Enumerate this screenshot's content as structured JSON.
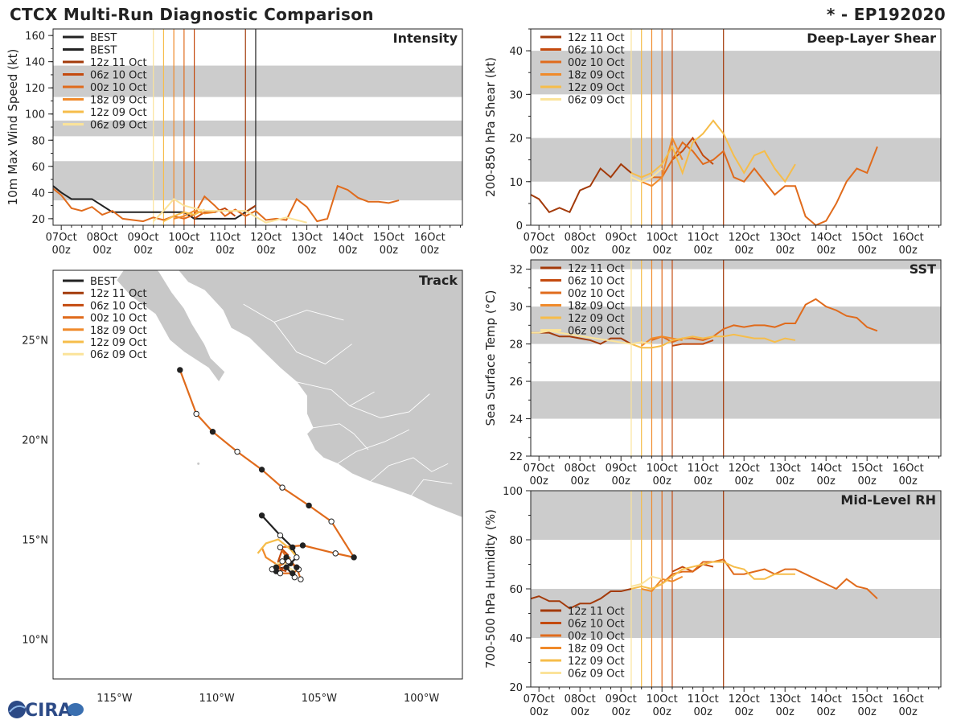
{
  "header": {
    "title": "CTCX Multi-Run Diagnostic Comparison",
    "storm_id": "* - EP192020"
  },
  "logo": {
    "text": "CIRA"
  },
  "runs": [
    {
      "label": "BEST",
      "color": "#222222"
    },
    {
      "label": "12z 11 Oct",
      "color": "#a33a0a",
      "init_day": 4.5
    },
    {
      "label": "06z 10 Oct",
      "color": "#c44a0e",
      "init_day": 3.25
    },
    {
      "label": "00z 10 Oct",
      "color": "#e06b1c",
      "init_day": 3.0
    },
    {
      "label": "18z 09 Oct",
      "color": "#f08a2a",
      "init_day": 2.75
    },
    {
      "label": "12z 09 Oct",
      "color": "#f6bd4a",
      "init_day": 2.5
    },
    {
      "label": "06z 09 Oct",
      "color": "#fbe39a",
      "init_day": 2.25
    }
  ],
  "time_axis": {
    "ticks": [
      {
        "top": "07Oct",
        "bottom": "00z"
      },
      {
        "top": "08Oct",
        "bottom": "00z"
      },
      {
        "top": "09Oct",
        "bottom": "00z"
      },
      {
        "top": "10Oct",
        "bottom": "00z"
      },
      {
        "top": "11Oct",
        "bottom": "00z"
      },
      {
        "top": "12Oct",
        "bottom": "00z"
      },
      {
        "top": "13Oct",
        "bottom": "00z"
      },
      {
        "top": "14Oct",
        "bottom": "00z"
      },
      {
        "top": "15Oct",
        "bottom": "00z"
      },
      {
        "top": "16Oct",
        "bottom": "00z"
      }
    ],
    "start_day": -0.2,
    "end_day": 9.8
  },
  "chart_data": [
    {
      "id": "intensity",
      "type": "line",
      "title": "Intensity",
      "ylabel": "10m Max Wind Speed (kt)",
      "ylim": [
        15,
        165
      ],
      "yticks": [
        20,
        40,
        60,
        80,
        100,
        120,
        140,
        160
      ],
      "shaded_bands": [
        [
          34,
          64
        ],
        [
          83,
          95
        ],
        [
          113,
          137
        ]
      ],
      "legend": "top-left",
      "series": [
        {
          "name": "BEST",
          "x": [
            -0.2,
            0.0,
            0.25,
            0.75,
            1.25,
            1.75,
            2.5,
            3.0,
            3.25,
            4.0,
            4.25,
            4.75
          ],
          "y": [
            45,
            40,
            35,
            35,
            25,
            25,
            25,
            25,
            20,
            20,
            20,
            30
          ]
        },
        {
          "name": "12z 11 Oct",
          "x": [
            4.5,
            4.75
          ],
          "y": [
            25,
            30
          ]
        },
        {
          "name": "06z 10 Oct",
          "x": [
            3.25,
            3.5,
            3.75,
            4.0,
            4.25
          ],
          "y": [
            20,
            25,
            25,
            28,
            22
          ]
        },
        {
          "name": "00z 10 Oct",
          "x": [
            -0.2,
            0.0,
            0.25,
            0.5,
            0.75,
            1.0,
            1.25,
            1.5,
            1.75,
            2.0,
            2.25,
            2.5,
            2.75,
            3.0,
            3.25,
            3.5,
            3.75,
            4.0,
            4.25,
            4.5,
            4.75,
            5.0,
            5.25,
            5.5,
            5.75,
            6.0,
            6.25,
            6.5,
            6.75,
            7.0,
            7.25,
            7.5,
            7.75,
            8.0,
            8.25
          ],
          "y": [
            43,
            38,
            28,
            26,
            29,
            23,
            26,
            20,
            19,
            18,
            21,
            19,
            22,
            20,
            23,
            37,
            30,
            22,
            27,
            22,
            26,
            19,
            20,
            19,
            35,
            29,
            18,
            20,
            45,
            42,
            36,
            33,
            33,
            32,
            34
          ]
        },
        {
          "name": "18z 09 Oct",
          "x": [
            2.75,
            3.0,
            3.25,
            3.5,
            3.75
          ],
          "y": [
            20,
            22,
            26,
            24,
            25
          ]
        },
        {
          "name": "12z 09 Oct",
          "x": [
            2.5,
            2.75,
            3.0,
            3.25,
            3.5
          ],
          "y": [
            18,
            22,
            25,
            23,
            27
          ]
        },
        {
          "name": "06z 09 Oct",
          "x": [
            2.25,
            2.5,
            2.75,
            3.0,
            3.25,
            3.5,
            4.5,
            5.0,
            5.5,
            6.0
          ],
          "y": [
            18,
            26,
            35,
            30,
            28,
            26,
            26,
            17,
            21,
            17
          ]
        }
      ]
    },
    {
      "id": "shear",
      "type": "line",
      "title": "Deep-Layer Shear",
      "ylabel": "200-850 hPa Shear (kt)",
      "ylim": [
        0,
        45
      ],
      "yticks": [
        0,
        10,
        20,
        30,
        40
      ],
      "shaded_bands": [
        [
          10,
          20
        ],
        [
          30,
          40
        ]
      ],
      "legend": "top-left",
      "series": [
        {
          "name": "12z 11 Oct",
          "x": [
            -0.2,
            0.0,
            0.25,
            0.5,
            0.75,
            1.0,
            1.25,
            1.5,
            1.75,
            2.0,
            2.25
          ],
          "y": [
            7,
            6,
            3,
            4,
            3,
            8,
            9,
            13,
            11,
            14,
            12
          ]
        },
        {
          "name": "06z 10 Oct",
          "x": [
            3.25,
            3.5,
            3.75,
            4.0,
            4.25
          ],
          "y": [
            15,
            17,
            20,
            16,
            14
          ]
        },
        {
          "name": "00z 10 Oct",
          "x": [
            2.75,
            3.0,
            3.25,
            3.5,
            3.75,
            4.0,
            4.25,
            4.5,
            4.75,
            5.0,
            5.25,
            5.5,
            5.75,
            6.0,
            6.25,
            6.5,
            6.75,
            7.0,
            7.25,
            7.5,
            7.75,
            8.0,
            8.25
          ],
          "y": [
            11,
            11,
            15,
            19,
            17,
            14,
            15,
            17,
            11,
            10,
            13,
            10,
            7,
            9,
            9,
            2,
            0,
            1,
            5,
            10,
            13,
            12,
            18
          ]
        },
        {
          "name": "18z 09 Oct",
          "x": [
            2.5,
            2.75,
            3.0,
            3.25,
            3.5
          ],
          "y": [
            10,
            9,
            11,
            20,
            15
          ]
        },
        {
          "name": "12z 09 Oct",
          "x": [
            2.25,
            2.5,
            2.75,
            3.0,
            3.25,
            3.5,
            3.75,
            4.0,
            4.25,
            4.5,
            4.75,
            5.0,
            5.25,
            5.5,
            5.75,
            6.0,
            6.25
          ],
          "y": [
            12,
            11,
            12,
            14,
            18,
            12,
            19,
            21,
            24,
            21,
            16,
            12,
            16,
            17,
            13,
            10,
            14
          ]
        },
        {
          "name": "06z 09 Oct",
          "x": [
            2.25,
            2.5,
            2.75,
            3.0
          ],
          "y": [
            11,
            10,
            11,
            13
          ]
        }
      ]
    },
    {
      "id": "sst",
      "type": "line",
      "title": "SST",
      "ylabel": "Sea Surface Temp (°C)",
      "ylim": [
        22,
        32.5
      ],
      "yticks": [
        22,
        24,
        26,
        28,
        30,
        32
      ],
      "shaded_bands": [
        [
          24,
          26
        ],
        [
          28,
          30
        ],
        [
          32,
          32.5
        ]
      ],
      "legend": "top-left",
      "series": [
        {
          "name": "12z 11 Oct",
          "x": [
            -0.2,
            0.0,
            0.25,
            0.5,
            0.75,
            1.0,
            1.25,
            1.5,
            1.75,
            2.0,
            2.25
          ],
          "y": [
            28.6,
            28.6,
            28.6,
            28.4,
            28.4,
            28.3,
            28.2,
            28.0,
            28.3,
            28.3,
            28.0
          ]
        },
        {
          "name": "06z 10 Oct",
          "x": [
            3.25,
            3.5,
            3.75,
            4.0,
            4.25
          ],
          "y": [
            27.9,
            28.0,
            28.0,
            28.0,
            28.2
          ]
        },
        {
          "name": "00z 10 Oct",
          "x": [
            2.75,
            3.0,
            3.25,
            3.5,
            3.75,
            4.0,
            4.25,
            4.5,
            4.75,
            5.0,
            5.25,
            5.5,
            5.75,
            6.0,
            6.25,
            6.5,
            6.75,
            7.0,
            7.25,
            7.5,
            7.75,
            8.0,
            8.25
          ],
          "y": [
            28.2,
            28.4,
            28.1,
            28.3,
            28.3,
            28.2,
            28.4,
            28.8,
            29.0,
            28.9,
            29.0,
            29.0,
            28.9,
            29.1,
            29.1,
            30.1,
            30.4,
            30.0,
            29.8,
            29.5,
            29.4,
            28.9,
            28.7
          ]
        },
        {
          "name": "18z 09 Oct",
          "x": [
            2.5,
            2.75,
            3.0,
            3.25,
            3.5
          ],
          "y": [
            27.9,
            28.3,
            28.4,
            28.3,
            28.2
          ]
        },
        {
          "name": "12z 09 Oct",
          "x": [
            2.25,
            2.5,
            2.75,
            3.0,
            3.25,
            3.5,
            3.75,
            4.0,
            4.25,
            4.5,
            4.75,
            5.0,
            5.25,
            5.5,
            5.75,
            6.0,
            6.25
          ],
          "y": [
            28.0,
            27.8,
            27.8,
            27.9,
            28.2,
            28.3,
            28.4,
            28.3,
            28.4,
            28.4,
            28.5,
            28.4,
            28.3,
            28.3,
            28.1,
            28.3,
            28.2
          ]
        },
        {
          "name": "06z 09 Oct",
          "x": [
            -0.2,
            0.0,
            0.25,
            0.5,
            2.25,
            2.5,
            2.75
          ],
          "y": [
            28.6,
            28.6,
            28.7,
            28.6,
            28.0,
            28.1,
            28.0
          ]
        }
      ]
    },
    {
      "id": "rh",
      "type": "line",
      "title": "Mid-Level RH",
      "ylabel": "700-500 hPa Humidity (%)",
      "ylim": [
        20,
        100
      ],
      "yticks": [
        20,
        40,
        60,
        80,
        100
      ],
      "shaded_bands": [
        [
          40,
          60
        ],
        [
          80,
          100
        ]
      ],
      "legend": "bottom-left",
      "series": [
        {
          "name": "12z 11 Oct",
          "x": [
            -0.2,
            0.0,
            0.25,
            0.5,
            0.75,
            1.0,
            1.25,
            1.5,
            1.75,
            2.0,
            2.25
          ],
          "y": [
            56,
            57,
            55,
            55,
            52,
            54,
            54,
            56,
            59,
            59,
            60
          ]
        },
        {
          "name": "06z 10 Oct",
          "x": [
            3.25,
            3.5,
            3.75,
            4.0,
            4.25
          ],
          "y": [
            67,
            69,
            67,
            70,
            69
          ]
        },
        {
          "name": "00z 10 Oct",
          "x": [
            2.75,
            3.0,
            3.25,
            3.5,
            3.75,
            4.0,
            4.25,
            4.5,
            4.75,
            5.0,
            5.25,
            5.5,
            5.75,
            6.0,
            6.25,
            6.5,
            6.75,
            7.0,
            7.25,
            7.5,
            7.75,
            8.0,
            8.25
          ],
          "y": [
            60,
            62,
            66,
            67,
            67,
            71,
            71,
            72,
            66,
            66,
            67,
            68,
            66,
            68,
            68,
            66,
            64,
            62,
            60,
            64,
            61,
            60,
            56
          ]
        },
        {
          "name": "18z 09 Oct",
          "x": [
            2.5,
            2.75,
            3.0,
            3.25,
            3.5
          ],
          "y": [
            60,
            59,
            64,
            63,
            65
          ]
        },
        {
          "name": "12z 09 Oct",
          "x": [
            2.25,
            2.5,
            2.75,
            3.0,
            3.25,
            3.5,
            3.75,
            4.0,
            4.25,
            4.5,
            4.75,
            5.0,
            5.25,
            5.5,
            5.75,
            6.0,
            6.25
          ],
          "y": [
            60,
            61,
            60,
            62,
            65,
            68,
            69,
            70,
            71,
            71,
            69,
            68,
            64,
            64,
            66,
            66,
            66
          ]
        },
        {
          "name": "06z 09 Oct",
          "x": [
            2.25,
            2.5,
            2.75,
            3.0
          ],
          "y": [
            61,
            62,
            65,
            64
          ]
        }
      ]
    },
    {
      "id": "track",
      "type": "scatter",
      "title": "Track",
      "xlabel": "",
      "ylabel": "",
      "xlim": [
        -118,
        -98
      ],
      "ylim": [
        8,
        28.5
      ],
      "xticks": [
        {
          "v": -115,
          "label": "115°W"
        },
        {
          "v": -110,
          "label": "110°W"
        },
        {
          "v": -105,
          "label": "105°W"
        },
        {
          "v": -100,
          "label": "100°W"
        }
      ],
      "yticks": [
        {
          "v": 10,
          "label": "10°N"
        },
        {
          "v": 15,
          "label": "15°N"
        },
        {
          "v": 20,
          "label": "20°N"
        },
        {
          "v": 25,
          "label": "25°N"
        }
      ],
      "legend": "top-left",
      "series": [
        {
          "name": "BEST",
          "x": [
            -107.8,
            -106.9,
            -106.3,
            -106.1,
            -106.4,
            -106.8,
            -107.1,
            -107.3,
            -106.6,
            -106.2
          ],
          "y": [
            16.2,
            15.2,
            14.6,
            14.1,
            13.8,
            13.9,
            13.4,
            13.5,
            13.6,
            13.1
          ]
        },
        {
          "name": "12z 11 Oct",
          "x": [
            -106.9,
            -106.7
          ],
          "y": [
            13.5,
            13.6
          ]
        },
        {
          "name": "06z 10 Oct",
          "x": [
            -106.5,
            -106.8,
            -107.0,
            -106.9,
            -106.6
          ],
          "y": [
            14.2,
            14.5,
            13.9,
            13.5,
            13.4
          ]
        },
        {
          "name": "00z 10 Oct",
          "x": [
            -111.8,
            -111.0,
            -110.2,
            -109.0,
            -107.8,
            -106.8,
            -105.5,
            -104.4,
            -103.3,
            -104.2,
            -105.8,
            -106.9,
            -106.6,
            -106.0,
            -106.3,
            -106.9,
            -107.1,
            -106.5,
            -106.1,
            -105.9
          ],
          "y": [
            23.5,
            21.3,
            20.4,
            19.4,
            18.5,
            17.6,
            16.7,
            15.9,
            14.1,
            14.3,
            14.7,
            14.6,
            14.1,
            13.5,
            13.3,
            13.3,
            13.6,
            13.9,
            13.6,
            13.0
          ]
        },
        {
          "name": "18z 09 Oct",
          "x": [
            -107.8,
            -107.6,
            -107.0,
            -106.6,
            -106.4
          ],
          "y": [
            14.6,
            14.1,
            13.7,
            13.9,
            14.1
          ]
        },
        {
          "name": "12z 09 Oct",
          "x": [
            -108.0,
            -107.6,
            -107.0,
            -106.4,
            -106.0
          ],
          "y": [
            14.3,
            14.8,
            15.0,
            14.5,
            14.0
          ]
        },
        {
          "name": "06z 09 Oct",
          "x": [
            -107.2,
            -106.8,
            -106.5,
            -106.2
          ],
          "y": [
            13.7,
            13.9,
            13.6,
            13.4
          ]
        }
      ]
    }
  ]
}
